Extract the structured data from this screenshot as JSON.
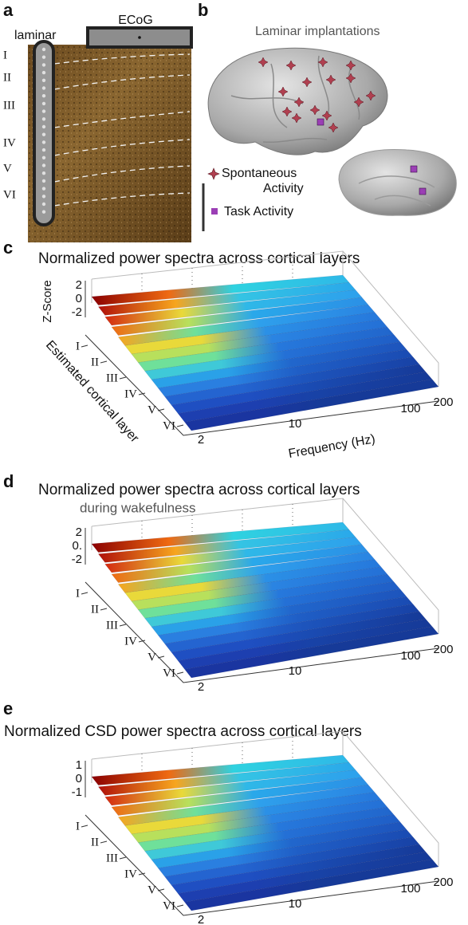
{
  "panel_a": {
    "label": "a",
    "probe": "laminar",
    "ecog": "ECoG",
    "layers": [
      "I",
      "II",
      "III",
      "IV",
      "V",
      "VI"
    ]
  },
  "panel_b": {
    "label": "b",
    "title": "Laminar implantations",
    "legend_spontaneous": [
      "Spontaneous",
      "Activity"
    ],
    "legend_task": "Task Activity"
  },
  "surfaces": [
    {
      "label": "c",
      "title": "Normalized power spectra across cortical layers",
      "z_label": "Z-Score",
      "z_ticks": [
        "2",
        "0",
        "-2"
      ],
      "layer_label": "Estimated cortical layer",
      "layers": [
        "I",
        "II",
        "III",
        "IV",
        "V",
        "VI"
      ],
      "freq_ticks": [
        "2",
        "10",
        "100",
        "200"
      ],
      "freq_label": "Frequency (Hz)"
    },
    {
      "label": "d",
      "title": "Normalized power spectra across cortical layers",
      "subtitle": "during wakefulness",
      "z_ticks": [
        "2",
        "0.",
        "-2"
      ],
      "layers": [
        "I",
        "II",
        "III",
        "IV",
        "V",
        "VI"
      ],
      "freq_ticks": [
        "2",
        "10",
        "100",
        "200"
      ]
    },
    {
      "label": "e",
      "title": "Normalized CSD power spectra across cortical layers",
      "z_ticks": [
        "1",
        "0",
        "-1"
      ],
      "layers": [
        "I",
        "II",
        "III",
        "IV",
        "V",
        "VI"
      ],
      "freq_ticks": [
        "2",
        "10",
        "100",
        "200"
      ]
    }
  ]
}
